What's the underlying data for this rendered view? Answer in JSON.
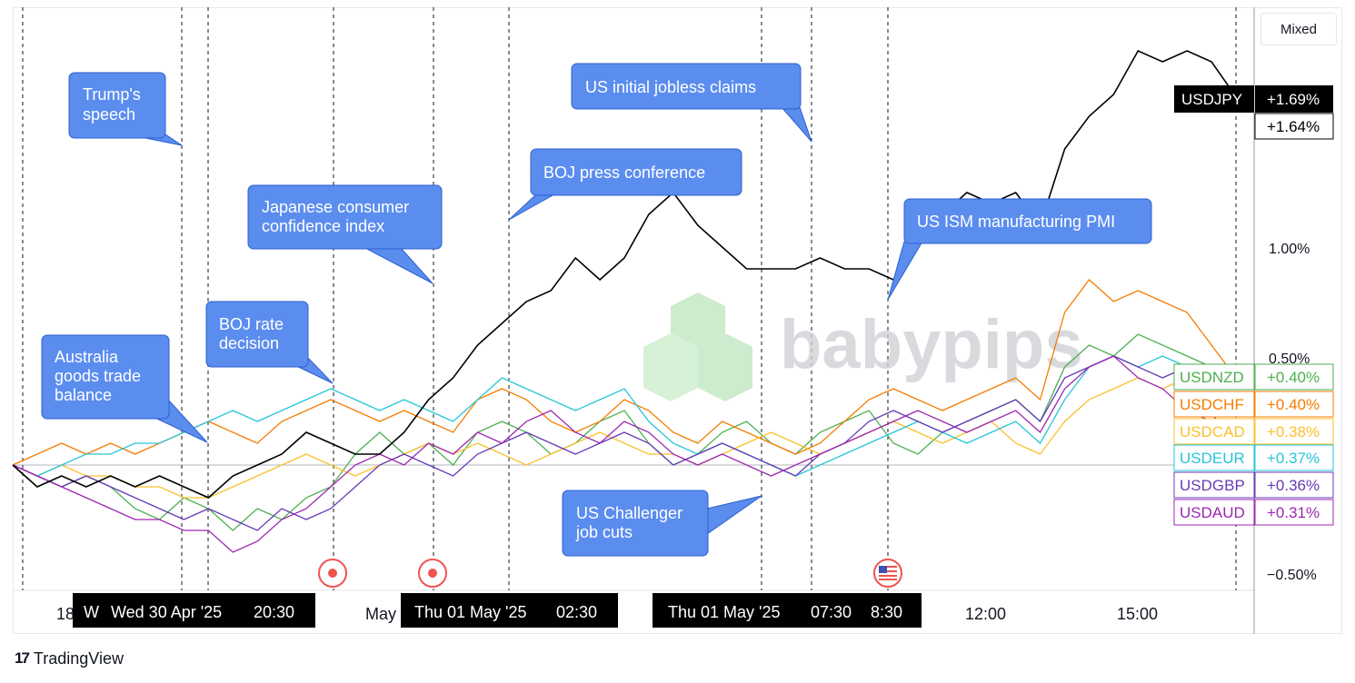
{
  "mode_button": "Mixed",
  "brand": {
    "logo": "17",
    "name": "TradingView"
  },
  "watermark": "babypips",
  "colors": {
    "USDJPY": "#000000",
    "USDNZD": "#4caf50",
    "USDCHF": "#f57c00",
    "USDCAD": "#fbc02d",
    "USDEUR": "#26c6da",
    "USDGBP": "#673ab7",
    "USDAUD": "#9c27b0",
    "callout_bg": "#5b8def",
    "callout_border": "#2c5fd0"
  },
  "chart_data": {
    "type": "line",
    "x_ticks": [
      "18",
      "May",
      "12:00",
      "15:00"
    ],
    "y_ticks": [
      "1.00%",
      "0.50%",
      "−0.50%"
    ],
    "ylim": [
      -0.62,
      2.05
    ],
    "n_points": 51,
    "series": [
      {
        "name": "USDJPY",
        "last": "+1.69%",
        "values": [
          0,
          -0.1,
          -0.05,
          -0.1,
          -0.05,
          -0.1,
          -0.05,
          -0.1,
          -0.15,
          -0.05,
          0,
          0.05,
          0.15,
          0.1,
          0.05,
          0.05,
          0.15,
          0.3,
          0.4,
          0.55,
          0.65,
          0.75,
          0.8,
          0.95,
          0.85,
          0.95,
          1.15,
          1.25,
          1.1,
          1.0,
          0.9,
          0.9,
          0.9,
          0.95,
          0.9,
          0.9,
          0.85,
          1.05,
          1.15,
          1.25,
          1.2,
          1.25,
          1.1,
          1.45,
          1.6,
          1.7,
          1.9,
          1.85,
          1.9,
          1.85,
          1.69
        ]
      },
      {
        "name": "USDNZD",
        "last": "+0.40%",
        "values": [
          0,
          -0.05,
          -0.1,
          -0.05,
          -0.1,
          -0.2,
          -0.25,
          -0.15,
          -0.2,
          -0.3,
          -0.2,
          -0.25,
          -0.15,
          -0.1,
          0.05,
          0.15,
          0.05,
          0.1,
          0.0,
          0.15,
          0.2,
          0.15,
          0.05,
          0.1,
          0.2,
          0.25,
          0.1,
          0.0,
          0.05,
          0.15,
          0.2,
          0.1,
          0.05,
          0.15,
          0.2,
          0.25,
          0.1,
          0.05,
          0.15,
          0.2,
          0.25,
          0.3,
          0.2,
          0.45,
          0.55,
          0.5,
          0.6,
          0.55,
          0.5,
          0.45,
          0.4
        ]
      },
      {
        "name": "USDCHF",
        "last": "+0.40%",
        "values": [
          0,
          0.05,
          0.1,
          0.05,
          0.1,
          0.05,
          0.1,
          0.15,
          0.2,
          0.15,
          0.1,
          0.2,
          0.25,
          0.3,
          0.25,
          0.2,
          0.25,
          0.2,
          0.15,
          0.3,
          0.35,
          0.3,
          0.2,
          0.15,
          0.2,
          0.3,
          0.25,
          0.15,
          0.1,
          0.2,
          0.15,
          0.1,
          0.05,
          0.1,
          0.2,
          0.3,
          0.35,
          0.3,
          0.25,
          0.3,
          0.35,
          0.4,
          0.3,
          0.7,
          0.85,
          0.75,
          0.8,
          0.75,
          0.7,
          0.55,
          0.4
        ]
      },
      {
        "name": "USDCAD",
        "last": "+0.38%",
        "values": [
          0,
          -0.05,
          0,
          -0.05,
          -0.05,
          -0.1,
          -0.1,
          -0.15,
          -0.15,
          -0.1,
          -0.05,
          0,
          0.05,
          0.0,
          -0.05,
          0.0,
          0.05,
          0.1,
          0.05,
          0.1,
          0.05,
          0.0,
          0.05,
          0.1,
          0.15,
          0.1,
          0.05,
          0.05,
          0.0,
          0.05,
          0.1,
          0.15,
          0.1,
          0.05,
          0.1,
          0.15,
          0.2,
          0.15,
          0.1,
          0.15,
          0.2,
          0.1,
          0.05,
          0.2,
          0.3,
          0.35,
          0.4,
          0.35,
          0.4,
          0.35,
          0.38
        ]
      },
      {
        "name": "USDEUR",
        "last": "+0.37%",
        "values": [
          0,
          -0.05,
          0,
          0.05,
          0.05,
          0.1,
          0.1,
          0.15,
          0.2,
          0.25,
          0.2,
          0.25,
          0.3,
          0.35,
          0.3,
          0.25,
          0.3,
          0.25,
          0.2,
          0.3,
          0.4,
          0.35,
          0.3,
          0.25,
          0.3,
          0.35,
          0.2,
          0.1,
          0.05,
          0.1,
          0.05,
          0.0,
          -0.05,
          0.0,
          0.05,
          0.1,
          0.15,
          0.2,
          0.15,
          0.1,
          0.15,
          0.2,
          0.1,
          0.3,
          0.45,
          0.5,
          0.45,
          0.5,
          0.45,
          0.4,
          0.37
        ]
      },
      {
        "name": "USDGBP",
        "last": "+0.36%",
        "values": [
          0,
          -0.05,
          -0.1,
          -0.05,
          -0.1,
          -0.15,
          -0.2,
          -0.25,
          -0.2,
          -0.25,
          -0.3,
          -0.2,
          -0.25,
          -0.2,
          -0.1,
          0.0,
          0.05,
          0.0,
          -0.05,
          0.05,
          0.1,
          0.15,
          0.1,
          0.05,
          0.1,
          0.15,
          0.1,
          0.0,
          0.05,
          0.1,
          0.05,
          0.0,
          -0.05,
          0.05,
          0.1,
          0.2,
          0.25,
          0.2,
          0.15,
          0.2,
          0.25,
          0.3,
          0.2,
          0.4,
          0.45,
          0.5,
          0.45,
          0.4,
          0.45,
          0.4,
          0.36
        ]
      },
      {
        "name": "USDAUD",
        "last": "+0.31%",
        "values": [
          0,
          -0.05,
          -0.1,
          -0.15,
          -0.2,
          -0.25,
          -0.25,
          -0.3,
          -0.3,
          -0.4,
          -0.35,
          -0.25,
          -0.2,
          -0.1,
          0.0,
          0.05,
          0.0,
          0.1,
          0.05,
          0.15,
          0.1,
          0.2,
          0.25,
          0.15,
          0.1,
          0.2,
          0.15,
          0.05,
          0.0,
          0.05,
          0.0,
          -0.05,
          0.0,
          0.05,
          0.1,
          0.15,
          0.2,
          0.25,
          0.2,
          0.15,
          0.2,
          0.25,
          0.15,
          0.35,
          0.45,
          0.5,
          0.4,
          0.35,
          0.25,
          0.2,
          0.31
        ]
      }
    ],
    "extra_label": "+1.64%",
    "events": [
      "Trump's speech",
      "Australia goods trade balance",
      "BOJ rate decision",
      "Japanese consumer confidence index",
      "BOJ press conference",
      "US initial jobless claims",
      "US ISM manufacturing PMI",
      "US Challenger job cuts"
    ],
    "time_labels": [
      "18",
      "W",
      "Wed 30 Apr '25",
      "20:30",
      "May",
      "Thu 01 May '25",
      "02:30",
      "Thu 01 May '25",
      "07:30",
      "8:30",
      "12:00",
      "15:00"
    ]
  }
}
